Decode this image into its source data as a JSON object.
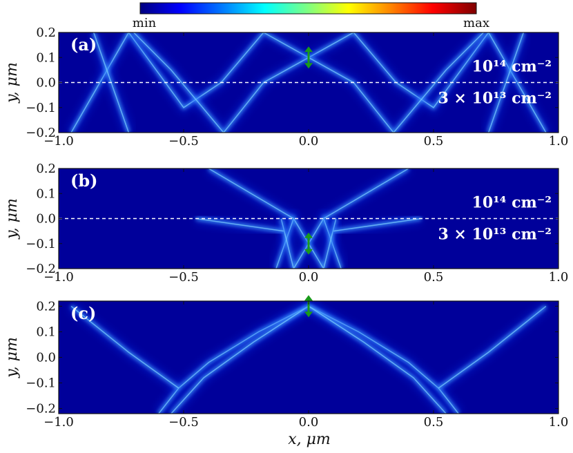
{
  "chart_data": [
    {
      "type": "heatmap",
      "panel_label": "(a)",
      "x_ticks": [
        -1.0,
        -0.5,
        0.0,
        0.5,
        1.0
      ],
      "x_tick_labels": [
        "−1.0",
        "−0.5",
        "0.0",
        "0.5",
        "1.0"
      ],
      "y_ticks": [
        0.2,
        0.1,
        0.0,
        -0.1,
        -0.2
      ],
      "y_tick_labels": [
        "0.2",
        "0.1",
        "0.0",
        "−0.1",
        "−0.2"
      ],
      "xlim": [
        -1.0,
        1.0
      ],
      "ylim": [
        -0.2,
        0.2
      ],
      "ylabel": "y, μm",
      "source_position": [
        0.0,
        0.1
      ],
      "interface_y": 0.0,
      "density_labels": {
        "upper": "10¹⁴ cm⁻²",
        "lower": "3 × 10¹³ cm⁻²"
      },
      "beam_paths": [
        [
          [
            0.0,
            0.1
          ],
          [
            -0.18,
            0.2
          ],
          [
            -0.35,
            0.0
          ],
          [
            -0.5,
            -0.1
          ],
          [
            -0.72,
            0.2
          ],
          [
            -0.95,
            -0.2
          ]
        ],
        [
          [
            0.0,
            0.1
          ],
          [
            0.18,
            0.2
          ],
          [
            0.35,
            0.0
          ],
          [
            0.5,
            -0.1
          ],
          [
            0.72,
            0.2
          ],
          [
            0.95,
            -0.2
          ]
        ],
        [
          [
            0.0,
            0.1
          ],
          [
            -0.18,
            0.0
          ],
          [
            -0.34,
            -0.2
          ],
          [
            -0.55,
            0.05
          ],
          [
            -0.7,
            0.2
          ]
        ],
        [
          [
            0.0,
            0.1
          ],
          [
            0.18,
            0.0
          ],
          [
            0.34,
            -0.2
          ],
          [
            0.55,
            0.05
          ],
          [
            0.7,
            0.2
          ]
        ],
        [
          [
            -0.86,
            0.2
          ],
          [
            -0.72,
            -0.2
          ]
        ],
        [
          [
            0.86,
            0.2
          ],
          [
            0.72,
            -0.2
          ]
        ]
      ]
    },
    {
      "type": "heatmap",
      "panel_label": "(b)",
      "x_ticks": [
        -1.0,
        -0.5,
        0.0,
        0.5,
        1.0
      ],
      "x_tick_labels": [
        "−1.0",
        "−0.5",
        "0.0",
        "0.5",
        "1.0"
      ],
      "y_ticks": [
        0.2,
        0.1,
        0.0,
        -0.1,
        -0.2
      ],
      "y_tick_labels": [
        "0.2",
        "0.1",
        "0.0",
        "−0.1",
        "−0.2"
      ],
      "xlim": [
        -1.0,
        1.0
      ],
      "ylim": [
        -0.2,
        0.2
      ],
      "ylabel": "y, μm",
      "source_position": [
        0.0,
        -0.1
      ],
      "interface_y": 0.0,
      "density_labels": {
        "upper": "10¹⁴ cm⁻²",
        "lower": "3 × 10¹³ cm⁻²"
      },
      "beam_paths": [
        [
          [
            0.0,
            -0.1
          ],
          [
            -0.06,
            0.0
          ],
          [
            -0.13,
            -0.2
          ]
        ],
        [
          [
            0.0,
            -0.1
          ],
          [
            0.06,
            0.0
          ],
          [
            0.13,
            -0.2
          ]
        ],
        [
          [
            0.0,
            -0.1
          ],
          [
            -0.06,
            -0.2
          ],
          [
            -0.11,
            0.0
          ]
        ],
        [
          [
            0.0,
            -0.1
          ],
          [
            0.06,
            -0.2
          ],
          [
            0.11,
            0.0
          ]
        ],
        [
          [
            -0.06,
            0.0
          ],
          [
            -0.4,
            0.2
          ]
        ],
        [
          [
            0.06,
            0.0
          ],
          [
            0.4,
            0.2
          ]
        ],
        [
          [
            -0.1,
            -0.05
          ],
          [
            -0.45,
            0.0
          ]
        ],
        [
          [
            0.1,
            -0.05
          ],
          [
            0.45,
            0.0
          ]
        ]
      ]
    },
    {
      "type": "heatmap",
      "panel_label": "(c)",
      "x_ticks": [
        -1.0,
        -0.5,
        0.0,
        0.5,
        1.0
      ],
      "x_tick_labels": [
        "−1.0",
        "−0.5",
        "0.0",
        "0.5",
        "1.0"
      ],
      "y_ticks": [
        0.2,
        0.1,
        0.0,
        -0.1,
        -0.2
      ],
      "y_tick_labels": [
        "0.2",
        "0.1",
        "0.0",
        "−0.1",
        "−0.2"
      ],
      "xlim": [
        -1.0,
        1.0
      ],
      "ylim": [
        -0.22,
        0.22
      ],
      "ylabel": "y, μm",
      "xlabel": "x, μm",
      "source_position": [
        0.0,
        0.2
      ],
      "beam_paths": [
        [
          [
            0.0,
            0.2
          ],
          [
            -0.2,
            0.1
          ],
          [
            -0.4,
            -0.02
          ],
          [
            -0.52,
            -0.12
          ],
          [
            -0.6,
            -0.22
          ]
        ],
        [
          [
            0.0,
            0.2
          ],
          [
            -0.22,
            0.06
          ],
          [
            -0.42,
            -0.08
          ],
          [
            -0.55,
            -0.22
          ]
        ],
        [
          [
            0.0,
            0.2
          ],
          [
            0.2,
            0.1
          ],
          [
            0.4,
            -0.02
          ],
          [
            0.52,
            -0.12
          ],
          [
            0.6,
            -0.22
          ]
        ],
        [
          [
            0.0,
            0.2
          ],
          [
            0.22,
            0.06
          ],
          [
            0.42,
            -0.08
          ],
          [
            0.55,
            -0.22
          ]
        ],
        [
          [
            -0.52,
            -0.12
          ],
          [
            -0.72,
            0.02
          ],
          [
            -0.95,
            0.2
          ]
        ],
        [
          [
            0.52,
            -0.12
          ],
          [
            0.72,
            0.02
          ],
          [
            0.95,
            0.2
          ]
        ]
      ]
    }
  ],
  "colorbar": {
    "min_label": "min",
    "max_label": "max",
    "colors": [
      "#00007f",
      "#0000ff",
      "#0080ff",
      "#00ffff",
      "#80ff80",
      "#ffff00",
      "#ff8000",
      "#ff0000",
      "#7f0000"
    ]
  },
  "colors": {
    "background": "#00009a",
    "beam": "#40a0ff",
    "source": "#1a9a1a"
  }
}
